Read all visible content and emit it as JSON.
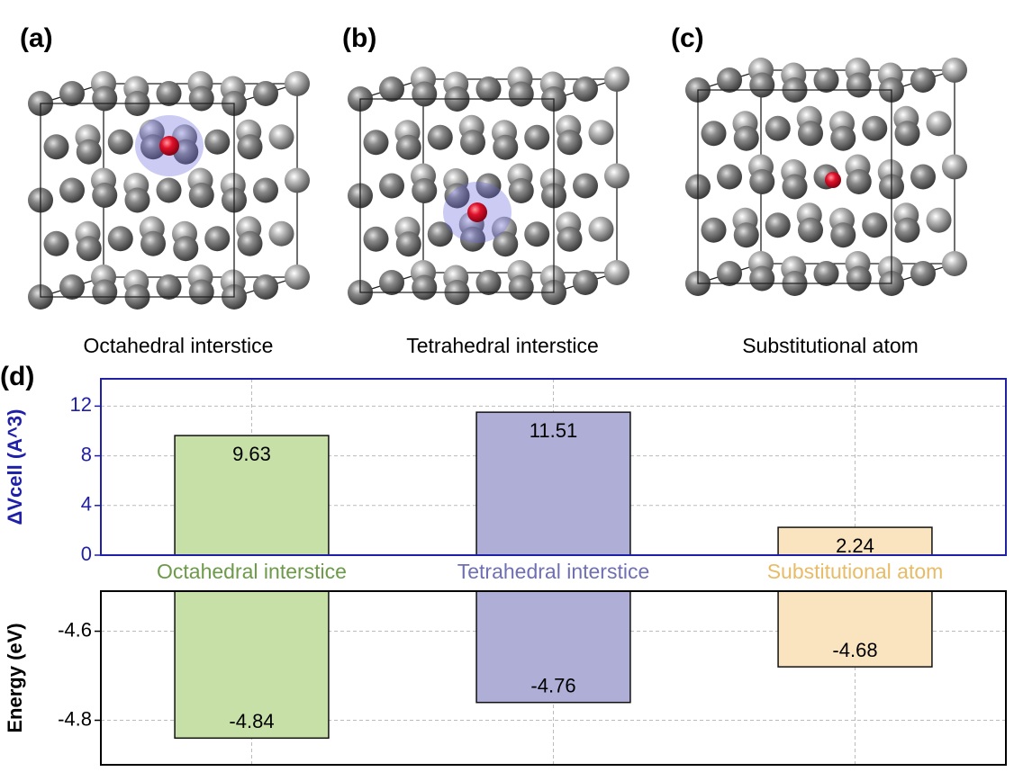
{
  "panels": [
    {
      "label": "(a)",
      "caption": "Octahedral interstice"
    },
    {
      "label": "(b)",
      "caption": "Tetrahedral interstice"
    },
    {
      "label": "(c)",
      "caption": "Substitutional atom"
    }
  ],
  "chart_label": "(d)",
  "chart_data": [
    {
      "type": "bar",
      "ylabel": "ΔVcell (A^3)",
      "axis_color": "#1f1fa8",
      "categories": [
        "Octahedral interstice",
        "Tetrahedral interstice",
        "Substitutional atom"
      ],
      "category_colors": [
        "#6c9a48",
        "#6f6fb3",
        "#e8bb66"
      ],
      "colors": [
        "#c6e0a8",
        "#aeaed6",
        "#fae4bf"
      ],
      "values": [
        9.63,
        11.51,
        2.24
      ],
      "ylim": [
        0,
        14.2
      ],
      "yticks": [
        0,
        4,
        8,
        12
      ],
      "grid": true
    },
    {
      "type": "bar",
      "ylabel": "Energy (eV)",
      "axis_color": "#000000",
      "colors": [
        "#c6e0a8",
        "#aeaed6",
        "#fae4bf"
      ],
      "values": [
        -4.84,
        -4.76,
        -4.68
      ],
      "ylim": [
        -4.9,
        -4.51
      ],
      "yticks": [
        -4.6,
        -4.8
      ],
      "grid": true
    }
  ]
}
